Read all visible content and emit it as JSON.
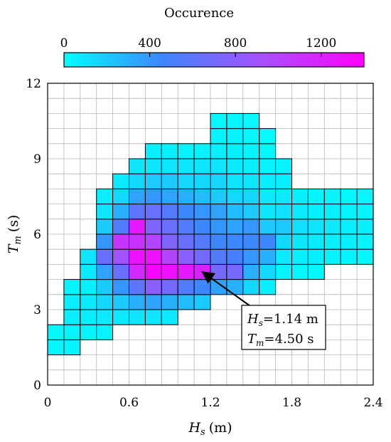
{
  "chart_data": {
    "type": "heatmap",
    "title": "",
    "colorbar": {
      "title": "Occurence",
      "range": [
        0,
        1400
      ],
      "ticks": [
        0,
        400,
        800,
        1200
      ],
      "tick_labels": [
        "0",
        "400",
        "800",
        "1200"
      ],
      "colors": [
        "#00ffff",
        "#3f84ff",
        "#a94fff",
        "#ff00ff"
      ],
      "placement": "top"
    },
    "xlabel": {
      "symbol": "H",
      "sub": "s",
      "unit": "(m)"
    },
    "ylabel": {
      "symbol": "T",
      "sub": "m",
      "unit": "(s)"
    },
    "xlim": [
      0,
      2.4
    ],
    "ylim": [
      0,
      12
    ],
    "xticks": [
      0,
      0.6,
      1.2,
      1.8,
      2.4
    ],
    "xtick_labels": [
      "0",
      "0.6",
      "1.2",
      "1.8",
      "2.4"
    ],
    "yticks": [
      0,
      3,
      6,
      9,
      12
    ],
    "ytick_labels": [
      "0",
      "3",
      "6",
      "9",
      "12"
    ],
    "bin_width_x": 0.12,
    "bin_width_y": 0.6,
    "grid": true,
    "columns": [
      {
        "x_start": 0.0,
        "y_start": 1.2,
        "values": [
          30,
          30
        ]
      },
      {
        "x_start": 0.12,
        "y_start": 1.2,
        "values": [
          40,
          40,
          60,
          60,
          40
        ]
      },
      {
        "x_start": 0.24,
        "y_start": 1.8,
        "values": [
          40,
          60,
          80,
          60,
          80,
          100
        ]
      },
      {
        "x_start": 0.36,
        "y_start": 1.8,
        "values": [
          50,
          80,
          150,
          200,
          350,
          650,
          400,
          200,
          100,
          60
        ]
      },
      {
        "x_start": 0.48,
        "y_start": 2.4,
        "values": [
          80,
          200,
          400,
          650,
          900,
          1100,
          550,
          300,
          150,
          80
        ]
      },
      {
        "x_start": 0.6,
        "y_start": 2.4,
        "values": [
          100,
          300,
          600,
          1150,
          1300,
          1100,
          1250,
          600,
          350,
          150,
          100
        ]
      },
      {
        "x_start": 0.72,
        "y_start": 2.4,
        "values": [
          100,
          350,
          800,
          1350,
          1300,
          1000,
          750,
          650,
          400,
          200,
          100,
          60
        ]
      },
      {
        "x_start": 0.84,
        "y_start": 2.4,
        "values": [
          80,
          300,
          700,
          1300,
          1000,
          750,
          650,
          550,
          350,
          200,
          100,
          60
        ]
      },
      {
        "x_start": 0.96,
        "y_start": 3.0,
        "values": [
          250,
          550,
          1250,
          800,
          650,
          550,
          450,
          300,
          150,
          100,
          50
        ]
      },
      {
        "x_start": 1.08,
        "y_start": 3.0,
        "values": [
          200,
          450,
          1200,
          700,
          550,
          450,
          400,
          250,
          150,
          100,
          50
        ]
      },
      {
        "x_start": 1.2,
        "y_start": 3.6,
        "values": [
          350,
          700,
          550,
          450,
          400,
          350,
          200,
          150,
          100,
          60,
          40,
          30
        ]
      },
      {
        "x_start": 1.32,
        "y_start": 3.6,
        "values": [
          300,
          700,
          500,
          450,
          350,
          250,
          150,
          100,
          80,
          60,
          40,
          30
        ]
      },
      {
        "x_start": 1.44,
        "y_start": 3.6,
        "values": [
          150,
          300,
          400,
          450,
          400,
          200,
          150,
          100,
          60,
          40,
          30,
          20
        ]
      },
      {
        "x_start": 1.56,
        "y_start": 3.6,
        "values": [
          60,
          150,
          300,
          450,
          200,
          100,
          80,
          60,
          40,
          30,
          20
        ]
      },
      {
        "x_start": 1.68,
        "y_start": 4.2,
        "values": [
          40,
          80,
          150,
          200,
          120,
          80,
          60,
          40
        ]
      },
      {
        "x_start": 1.8,
        "y_start": 4.2,
        "values": [
          30,
          60,
          100,
          120,
          80,
          60
        ]
      },
      {
        "x_start": 1.92,
        "y_start": 4.2,
        "values": [
          30,
          60,
          80,
          100,
          60,
          40
        ]
      },
      {
        "x_start": 2.04,
        "y_start": 4.8,
        "values": [
          40,
          60,
          80,
          60,
          40
        ]
      },
      {
        "x_start": 2.16,
        "y_start": 4.8,
        "values": [
          40,
          60,
          60,
          40,
          30
        ]
      },
      {
        "x_start": 2.28,
        "y_start": 4.8,
        "values": [
          30,
          40,
          60,
          40,
          30
        ]
      }
    ],
    "annotation": {
      "hs_label": "H",
      "hs_sub": "s",
      "hs_value": "=1.14 m",
      "tm_label": "T",
      "tm_sub": "m",
      "tm_value": "=4.50 s",
      "point": [
        1.14,
        4.5
      ]
    }
  }
}
